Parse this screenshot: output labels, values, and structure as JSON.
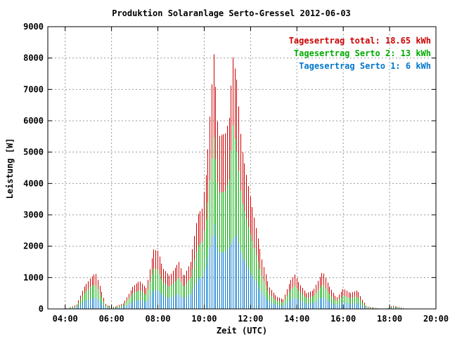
{
  "chart_data": {
    "type": "bar",
    "title": "Produktion Solaranlage Serto-Gressel 2012-06-03",
    "xlabel": "Zeit (UTC)",
    "ylabel": "Leistung [W]",
    "ylim": [
      0,
      9000
    ],
    "xlim_hours": [
      3.25,
      20.0
    ],
    "yticks": [
      "0",
      "1000",
      "2000",
      "3000",
      "4000",
      "5000",
      "6000",
      "7000",
      "8000",
      "9000"
    ],
    "xticks": [
      "04:00",
      "06:00",
      "08:00",
      "10:00",
      "12:00",
      "14:00",
      "16:00",
      "18:00",
      "20:00"
    ],
    "grid": true,
    "legend_placement": "top-right",
    "series": [
      {
        "name": "Tagesertrag total: 18.65 kWh",
        "color": "#cc0000"
      },
      {
        "name": "Tagesertrag Serto 2: 13 kWh",
        "color": "#00aa00"
      },
      {
        "name": "Tagesertrag Serto 1: 6 kWh",
        "color": "#0077cc"
      }
    ],
    "profile_total": [
      [
        3.9,
        0
      ],
      [
        4.2,
        40
      ],
      [
        4.5,
        150
      ],
      [
        4.8,
        700
      ],
      [
        5.1,
        1000
      ],
      [
        5.3,
        1150
      ],
      [
        5.5,
        700
      ],
      [
        5.75,
        120
      ],
      [
        6.1,
        60
      ],
      [
        6.5,
        180
      ],
      [
        6.9,
        700
      ],
      [
        7.2,
        900
      ],
      [
        7.5,
        650
      ],
      [
        7.8,
        1900
      ],
      [
        8.0,
        1850
      ],
      [
        8.2,
        1300
      ],
      [
        8.5,
        1050
      ],
      [
        8.9,
        1500
      ],
      [
        9.1,
        1000
      ],
      [
        9.4,
        1500
      ],
      [
        9.7,
        3000
      ],
      [
        9.9,
        3200
      ],
      [
        10.1,
        4500
      ],
      [
        10.3,
        7000
      ],
      [
        10.4,
        8150
      ],
      [
        10.6,
        5500
      ],
      [
        10.9,
        5600
      ],
      [
        11.1,
        6200
      ],
      [
        11.2,
        8150
      ],
      [
        11.4,
        7300
      ],
      [
        11.6,
        5200
      ],
      [
        11.9,
        3900
      ],
      [
        12.2,
        2700
      ],
      [
        12.5,
        1500
      ],
      [
        12.8,
        700
      ],
      [
        13.1,
        400
      ],
      [
        13.4,
        300
      ],
      [
        13.7,
        900
      ],
      [
        13.9,
        1100
      ],
      [
        14.1,
        800
      ],
      [
        14.4,
        500
      ],
      [
        14.7,
        600
      ],
      [
        14.9,
        900
      ],
      [
        15.1,
        1200
      ],
      [
        15.4,
        700
      ],
      [
        15.7,
        350
      ],
      [
        16.0,
        650
      ],
      [
        16.3,
        500
      ],
      [
        16.6,
        600
      ],
      [
        16.8,
        300
      ],
      [
        17.0,
        80
      ],
      [
        17.3,
        40
      ],
      [
        17.6,
        10
      ],
      [
        17.9,
        20
      ],
      [
        18.1,
        100
      ],
      [
        18.4,
        60
      ],
      [
        18.7,
        0
      ]
    ],
    "profile_serto2": [
      [
        3.9,
        0
      ],
      [
        4.2,
        30
      ],
      [
        4.5,
        100
      ],
      [
        4.8,
        500
      ],
      [
        5.1,
        720
      ],
      [
        5.3,
        780
      ],
      [
        5.5,
        480
      ],
      [
        5.75,
        80
      ],
      [
        6.1,
        40
      ],
      [
        6.5,
        120
      ],
      [
        6.9,
        500
      ],
      [
        7.2,
        600
      ],
      [
        7.5,
        430
      ],
      [
        7.8,
        1300
      ],
      [
        8.0,
        1250
      ],
      [
        8.2,
        850
      ],
      [
        8.5,
        700
      ],
      [
        8.9,
        1000
      ],
      [
        9.1,
        680
      ],
      [
        9.4,
        1000
      ],
      [
        9.7,
        2000
      ],
      [
        9.9,
        2150
      ],
      [
        10.1,
        3000
      ],
      [
        10.3,
        4700
      ],
      [
        10.4,
        5500
      ],
      [
        10.6,
        3700
      ],
      [
        10.9,
        3750
      ],
      [
        11.1,
        4200
      ],
      [
        11.2,
        6000
      ],
      [
        11.4,
        5000
      ],
      [
        11.6,
        3500
      ],
      [
        11.9,
        2600
      ],
      [
        12.2,
        1800
      ],
      [
        12.5,
        1000
      ],
      [
        12.8,
        470
      ],
      [
        13.1,
        270
      ],
      [
        13.4,
        200
      ],
      [
        13.7,
        600
      ],
      [
        13.9,
        740
      ],
      [
        14.1,
        540
      ],
      [
        14.4,
        340
      ],
      [
        14.7,
        400
      ],
      [
        14.9,
        600
      ],
      [
        15.1,
        800
      ],
      [
        15.4,
        470
      ],
      [
        15.7,
        240
      ],
      [
        16.0,
        430
      ],
      [
        16.3,
        340
      ],
      [
        16.6,
        400
      ],
      [
        16.8,
        200
      ],
      [
        17.0,
        55
      ],
      [
        17.3,
        25
      ],
      [
        17.6,
        7
      ],
      [
        17.9,
        15
      ],
      [
        18.1,
        70
      ],
      [
        18.4,
        40
      ],
      [
        18.7,
        0
      ]
    ],
    "profile_serto1": [
      [
        3.9,
        0
      ],
      [
        4.2,
        15
      ],
      [
        4.5,
        50
      ],
      [
        4.8,
        240
      ],
      [
        5.1,
        330
      ],
      [
        5.3,
        370
      ],
      [
        5.5,
        230
      ],
      [
        5.75,
        40
      ],
      [
        6.1,
        20
      ],
      [
        6.5,
        60
      ],
      [
        6.9,
        230
      ],
      [
        7.2,
        290
      ],
      [
        7.5,
        210
      ],
      [
        7.8,
        610
      ],
      [
        8.0,
        600
      ],
      [
        8.2,
        420
      ],
      [
        8.5,
        340
      ],
      [
        8.9,
        480
      ],
      [
        9.1,
        320
      ],
      [
        9.4,
        480
      ],
      [
        9.7,
        960
      ],
      [
        9.9,
        1030
      ],
      [
        10.1,
        1450
      ],
      [
        10.3,
        2250
      ],
      [
        10.4,
        2700
      ],
      [
        10.6,
        1800
      ],
      [
        10.9,
        1800
      ],
      [
        11.1,
        2000
      ],
      [
        11.2,
        2200
      ],
      [
        11.4,
        2350
      ],
      [
        11.6,
        1700
      ],
      [
        11.9,
        1250
      ],
      [
        12.2,
        870
      ],
      [
        12.5,
        480
      ],
      [
        12.8,
        225
      ],
      [
        13.1,
        130
      ],
      [
        13.4,
        96
      ],
      [
        13.7,
        290
      ],
      [
        13.9,
        355
      ],
      [
        14.1,
        260
      ],
      [
        14.4,
        160
      ],
      [
        14.7,
        190
      ],
      [
        14.9,
        290
      ],
      [
        15.1,
        385
      ],
      [
        15.4,
        225
      ],
      [
        15.7,
        115
      ],
      [
        16.0,
        210
      ],
      [
        16.3,
        160
      ],
      [
        16.6,
        190
      ],
      [
        16.8,
        96
      ],
      [
        17.0,
        26
      ],
      [
        17.3,
        13
      ],
      [
        17.6,
        3
      ],
      [
        17.9,
        6
      ],
      [
        18.1,
        32
      ],
      [
        18.4,
        19
      ],
      [
        18.7,
        0
      ]
    ],
    "bar_interval_hours": 0.0833
  }
}
